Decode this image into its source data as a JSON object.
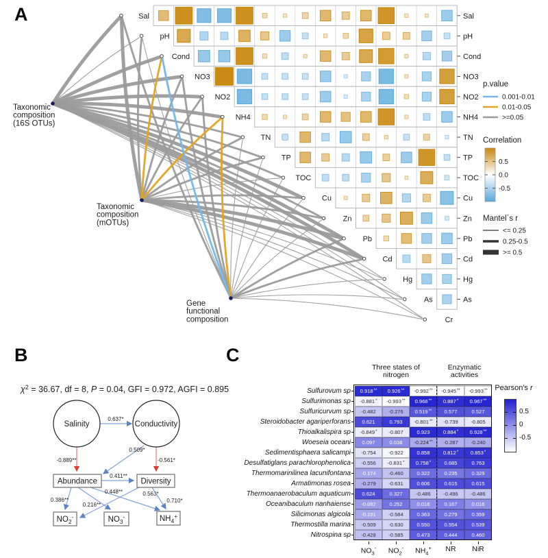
{
  "panels": {
    "a": "A",
    "b": "B",
    "c": "C"
  },
  "chart_data": [
    {
      "id": "panelA_mantel_network_corrplot",
      "type": "heatmap",
      "description": "Upper-triangle Pearson correlation matrix (square size and color = r) combined with Mantel-test network links from three community matrices to environmental variables",
      "variables": [
        "Sal",
        "pH",
        "Cond",
        "NO3",
        "NO2",
        "NH4",
        "TN",
        "TP",
        "TOC",
        "Cu",
        "Zn",
        "Pb",
        "Cd",
        "Hg",
        "As",
        "Cr"
      ],
      "upper_triangle_r_estimated": [
        [
          0.45,
          0.9,
          -0.7,
          -0.7,
          0.9,
          0.12,
          0.05,
          0.2,
          0.5,
          0.3,
          0.5,
          0.85,
          0.06,
          0.04,
          -0.5
        ],
        [
          0.65,
          -0.35,
          -0.3,
          0.55,
          0.35,
          -0.5,
          -0.2,
          0.06,
          0.15,
          0.7,
          0.3,
          0.25,
          -0.45,
          -0.2
        ],
        [
          -0.55,
          -0.55,
          0.9,
          0.1,
          -0.25,
          0.05,
          0.5,
          0.3,
          0.65,
          0.8,
          0.05,
          -0.3,
          -0.45
        ],
        [
          0.95,
          -0.75,
          -0.2,
          -0.2,
          -0.2,
          -0.5,
          -0.05,
          -0.4,
          -0.75,
          0.05,
          -0.4,
          0.75
        ],
        [
          -0.75,
          -0.2,
          -0.2,
          -0.2,
          -0.5,
          -0.05,
          -0.4,
          -0.75,
          0.1,
          -0.4,
          0.75
        ],
        [
          0.15,
          0.05,
          0.2,
          0.5,
          0.4,
          0.5,
          0.85,
          0.05,
          -0.25,
          -0.5
        ],
        [
          -0.2,
          0.5,
          -0.3,
          -0.55,
          0.25,
          0.06,
          -0.2,
          0.2,
          -0.05
        ],
        [
          0.5,
          0.3,
          -0.3,
          -0.55,
          0.25,
          -0.5,
          0.85,
          -0.2
        ],
        [
          -0.25,
          -0.25,
          -0.4,
          0.35,
          0.03,
          0.6,
          -0.12
        ],
        [
          0.05,
          0.3,
          0.55,
          -0.35,
          0.3,
          -0.65
        ],
        [
          0.2,
          0.35,
          0.6,
          -0.5,
          -0.08
        ],
        [
          0.15,
          0.45,
          -0.45,
          -0.5
        ],
        [
          -0.3,
          0.35,
          -0.45
        ],
        [
          -0.45,
          -0.4
        ],
        [
          -0.4
        ]
      ],
      "network_nodes": [
        {
          "id": "16S",
          "label_lines": [
            "Taxonomic",
            "composition",
            "(16S OTUs)"
          ]
        },
        {
          "id": "mOTU",
          "label_lines": [
            "Taxonomic",
            "composition",
            "(mOTUs)"
          ]
        },
        {
          "id": "gene",
          "label_lines": [
            "Gene",
            "functional",
            "composition"
          ]
        }
      ],
      "network_edges": [
        {
          "from": "16S",
          "to": "Sal",
          "w": 3,
          "p": "ns"
        },
        {
          "from": "16S",
          "to": "pH",
          "w": 1,
          "p": "ns"
        },
        {
          "from": "16S",
          "to": "Cond",
          "w": 3,
          "p": "ns"
        },
        {
          "from": "16S",
          "to": "NO3",
          "w": 3,
          "p": "ns"
        },
        {
          "from": "16S",
          "to": "NO2",
          "w": 3,
          "p": "ns"
        },
        {
          "from": "16S",
          "to": "NH4",
          "w": 3,
          "p": "ns"
        },
        {
          "from": "16S",
          "to": "TN",
          "w": 2,
          "p": "ns"
        },
        {
          "from": "16S",
          "to": "TP",
          "w": 2,
          "p": "ns"
        },
        {
          "from": "16S",
          "to": "TOC",
          "w": 2,
          "p": "ns"
        },
        {
          "from": "16S",
          "to": "Cu",
          "w": 3,
          "p": "ns"
        },
        {
          "from": "16S",
          "to": "Zn",
          "w": 2,
          "p": "ns"
        },
        {
          "from": "16S",
          "to": "Pb",
          "w": 3,
          "p": "ns"
        },
        {
          "from": "16S",
          "to": "Cd",
          "w": 3,
          "p": "ns"
        },
        {
          "from": "16S",
          "to": "Hg",
          "w": 1,
          "p": "ns"
        },
        {
          "from": "16S",
          "to": "As",
          "w": 1,
          "p": "ns"
        },
        {
          "from": "16S",
          "to": "Cr",
          "w": 1,
          "p": "ns"
        },
        {
          "from": "mOTU",
          "to": "Sal",
          "w": 3,
          "p": "ns"
        },
        {
          "from": "mOTU",
          "to": "pH",
          "w": 2,
          "p": "ns"
        },
        {
          "from": "mOTU",
          "to": "Cond",
          "w": 2,
          "p": "p01_05"
        },
        {
          "from": "mOTU",
          "to": "NO3",
          "w": 2,
          "p": "ns"
        },
        {
          "from": "mOTU",
          "to": "NO2",
          "w": 2,
          "p": "ns"
        },
        {
          "from": "mOTU",
          "to": "NH4",
          "w": 2,
          "p": "p01_05"
        },
        {
          "from": "mOTU",
          "to": "TN",
          "w": 2,
          "p": "ns"
        },
        {
          "from": "mOTU",
          "to": "TP",
          "w": 2,
          "p": "ns"
        },
        {
          "from": "mOTU",
          "to": "TOC",
          "w": 1,
          "p": "ns"
        },
        {
          "from": "mOTU",
          "to": "Cu",
          "w": 2,
          "p": "ns"
        },
        {
          "from": "mOTU",
          "to": "Zn",
          "w": 2,
          "p": "ns"
        },
        {
          "from": "mOTU",
          "to": "Pb",
          "w": 3,
          "p": "ns"
        },
        {
          "from": "mOTU",
          "to": "Cd",
          "w": 3,
          "p": "ns"
        },
        {
          "from": "mOTU",
          "to": "Hg",
          "w": 1,
          "p": "ns"
        },
        {
          "from": "mOTU",
          "to": "As",
          "w": 1,
          "p": "ns"
        },
        {
          "from": "mOTU",
          "to": "Cr",
          "w": 1,
          "p": "ns"
        },
        {
          "from": "gene",
          "to": "Sal",
          "w": 2,
          "p": "ns"
        },
        {
          "from": "gene",
          "to": "pH",
          "w": 1,
          "p": "ns"
        },
        {
          "from": "gene",
          "to": "Cond",
          "w": 2,
          "p": "p001_01"
        },
        {
          "from": "gene",
          "to": "NO3",
          "w": 2,
          "p": "ns"
        },
        {
          "from": "gene",
          "to": "NO2",
          "w": 2,
          "p": "ns"
        },
        {
          "from": "gene",
          "to": "NH4",
          "w": 2,
          "p": "p01_05"
        },
        {
          "from": "gene",
          "to": "TN",
          "w": 1,
          "p": "ns"
        },
        {
          "from": "gene",
          "to": "TP",
          "w": 1,
          "p": "ns"
        },
        {
          "from": "gene",
          "to": "TOC",
          "w": 1,
          "p": "ns"
        },
        {
          "from": "gene",
          "to": "Cu",
          "w": 1,
          "p": "ns"
        },
        {
          "from": "gene",
          "to": "Zn",
          "w": 1,
          "p": "ns"
        },
        {
          "from": "gene",
          "to": "Pb",
          "w": 2,
          "p": "ns"
        },
        {
          "from": "gene",
          "to": "Cd",
          "w": 2,
          "p": "ns"
        },
        {
          "from": "gene",
          "to": "Hg",
          "w": 1,
          "p": "ns"
        },
        {
          "from": "gene",
          "to": "As",
          "w": 1,
          "p": "ns"
        },
        {
          "from": "gene",
          "to": "Cr",
          "w": 1,
          "p": "ns"
        }
      ],
      "legends": {
        "pvalue": {
          "title": "p.value",
          "items": [
            {
              "label": "0.001-0.01",
              "key": "p001_01"
            },
            {
              "label": "0.01-0.05",
              "key": "p01_05"
            },
            {
              "label": ">=0.05",
              "key": "ns"
            }
          ]
        },
        "correlation": {
          "title": "Correlation",
          "ticks": [
            "0.5",
            "0.0",
            "-0.5"
          ]
        },
        "mantel": {
          "title": "Mantel`s r",
          "items": [
            {
              "label": "<= 0.25",
              "w": 1
            },
            {
              "label": "0.25-0.5",
              "w": 2
            },
            {
              "label": ">= 0.5",
              "w": 3
            }
          ]
        }
      },
      "colors": {
        "positive": "#C8860A",
        "negative": "#58A8DC",
        "edge_gray": "#9b9b9b",
        "edge_orange": "#E3A321",
        "edge_blue": "#74b7ea"
      }
    },
    {
      "id": "panelB_sem",
      "type": "diagram",
      "fit_parts": [
        {
          "t": "χ",
          "i": true
        },
        {
          "t": "2",
          "sup": true
        },
        {
          "t": " = 36.67, df = 8, "
        },
        {
          "t": "P",
          "i": true
        },
        {
          "t": " = 0.04, GFI = 0.972, AGFI = 0.895"
        }
      ],
      "nodes": [
        {
          "id": "salinity",
          "shape": "circle",
          "parts": [
            {
              "t": "Salinity"
            }
          ]
        },
        {
          "id": "conductivity",
          "shape": "circle",
          "parts": [
            {
              "t": "Conductivity"
            }
          ]
        },
        {
          "id": "abundance",
          "shape": "rect",
          "parts": [
            {
              "t": "Abundance"
            }
          ]
        },
        {
          "id": "diversity",
          "shape": "rect",
          "parts": [
            {
              "t": "Diversity"
            }
          ]
        },
        {
          "id": "no2",
          "shape": "rect",
          "parts": [
            {
              "t": "NO"
            },
            {
              "t": "2",
              "sub": true
            },
            {
              "t": "-",
              "sup": true
            }
          ]
        },
        {
          "id": "no3",
          "shape": "rect",
          "parts": [
            {
              "t": "NO"
            },
            {
              "t": "3",
              "sub": true
            },
            {
              "t": "-",
              "sup": true
            }
          ]
        },
        {
          "id": "nh4",
          "shape": "rect",
          "parts": [
            {
              "t": "NH"
            },
            {
              "t": "4",
              "sub": true
            },
            {
              "t": "+",
              "sup": true
            }
          ]
        }
      ],
      "edges": [
        {
          "from": "salinity",
          "to": "conductivity",
          "label": "0.637*",
          "sign": "positive"
        },
        {
          "from": "salinity",
          "to": "abundance",
          "label": "-0.889**",
          "sign": "negative"
        },
        {
          "from": "conductivity",
          "to": "abundance",
          "label": "0.509*",
          "sign": "positive"
        },
        {
          "from": "conductivity",
          "to": "diversity",
          "label": "-0.561*",
          "sign": "negative"
        },
        {
          "from": "abundance",
          "to": "diversity",
          "label": "0.411**",
          "sign": "positive"
        },
        {
          "from": "abundance",
          "to": "no2",
          "label": "0.386**",
          "sign": "positive"
        },
        {
          "from": "abundance",
          "to": "no3",
          "label": "0.216**",
          "sign": "positive"
        },
        {
          "from": "abundance",
          "to": "nh4",
          "label": "0.448**",
          "sign": "positive"
        },
        {
          "from": "diversity",
          "to": "no2",
          "label": "0.563*",
          "sign": "positive"
        },
        {
          "from": "diversity",
          "to": "nh4",
          "label": "0.710*",
          "sign": "positive"
        }
      ],
      "colors": {
        "positive_line": "#7fa3d4",
        "positive_head": "#5b84c4",
        "negative_line": "#e87777",
        "negative_head": "#dd3b30"
      }
    },
    {
      "id": "panelC_pearson_heatmap",
      "type": "heatmap",
      "column_groups": [
        {
          "label_lines": [
            "Three states of",
            "nitrogen"
          ],
          "cols": [
            0,
            1,
            2
          ]
        },
        {
          "label_lines": [
            "Enzymatic",
            "activities"
          ],
          "cols": [
            3,
            4
          ]
        }
      ],
      "columns": [
        [
          {
            "t": "NO"
          },
          {
            "t": "3",
            "sub": true
          },
          {
            "t": "-",
            "sup": true
          }
        ],
        [
          {
            "t": "NO"
          },
          {
            "t": "2",
            "sub": true
          },
          {
            "t": "-",
            "sup": true
          }
        ],
        [
          {
            "t": "NH"
          },
          {
            "t": "4",
            "sub": true
          },
          {
            "t": "+",
            "sup": true
          }
        ],
        [
          {
            "t": "NR"
          }
        ],
        [
          {
            "t": "NiR"
          }
        ]
      ],
      "rows": [
        "Sulfurovum sp",
        "Sulfurimonas sp",
        "Sulfuricurvum sp",
        "Steroidobacter agariperforans",
        "Thioalkalispira sp",
        "Woeseia oceani",
        "Sedimentisphaera salicampi",
        "Desulfatiglans parachlorophenolica",
        "Thermomarinilinea lacunifontana",
        "Armatimonas rosea",
        "Thermoanaerobaculum aquaticum",
        "Oceanibaculum nanhaiense",
        "Silicimonas algicola",
        "Thermostilla marina",
        "Nitrospina sp"
      ],
      "values": [
        [
          "0.918",
          "0.926",
          "-0.992",
          "-0.945",
          "-0.993"
        ],
        [
          "-0.881",
          "-0.993",
          "0.968",
          "0.887",
          "0.967"
        ],
        [
          "-0.482",
          "-0.276",
          "0.519",
          "0.577",
          "0.527"
        ],
        [
          "0.621",
          "0.793",
          "-0.801",
          "-0.739",
          "-0.805"
        ],
        [
          "-0.849",
          "-0.807",
          "0.923",
          "0.884",
          "0.928"
        ],
        [
          "0.097",
          "0.038",
          "-0.224",
          "-0.287",
          "-0.240"
        ],
        [
          "-0.754",
          "-0.922",
          "0.858",
          "0.812",
          "0.853"
        ],
        [
          "-0.556",
          "-0.831",
          "0.758",
          "0.685",
          "0.763"
        ],
        [
          "-0.174",
          "-0.460",
          "0.322",
          "0.235",
          "0.329"
        ],
        [
          "-0.279",
          "-0.631",
          "0.606",
          "0.615",
          "0.615"
        ],
        [
          "0.624",
          "0.327",
          "-0.486",
          "-0.496",
          "-0.486"
        ],
        [
          "-0.092",
          "0.252",
          "0.016",
          "0.167",
          "0.016"
        ],
        [
          "-0.191",
          "-0.584",
          "0.363",
          "0.279",
          "0.359"
        ],
        [
          "-0.509",
          "-0.630",
          "0.550",
          "0.554",
          "0.539"
        ],
        [
          "-0.428",
          "-0.585",
          "0.473",
          "0.444",
          "0.460"
        ]
      ],
      "stars": [
        [
          "**",
          "**",
          "**",
          "**",
          "**"
        ],
        [
          "*",
          "**",
          "**",
          "*",
          "**"
        ],
        [
          "",
          "",
          "**",
          "",
          ""
        ],
        [
          "",
          "",
          "**",
          "",
          ""
        ],
        [
          "*",
          "",
          "",
          "*",
          "**"
        ],
        [
          "",
          "",
          "**",
          "",
          ""
        ],
        [
          "",
          "",
          "",
          "*",
          "*"
        ],
        [
          "",
          "*",
          "*",
          "",
          ""
        ],
        [
          "",
          "",
          "",
          "",
          ""
        ],
        [
          "",
          "",
          "",
          "",
          ""
        ],
        [
          "",
          "",
          "",
          "",
          ""
        ],
        [
          "",
          "",
          "",
          "",
          ""
        ],
        [
          "",
          "",
          "",
          "",
          ""
        ],
        [
          "",
          "",
          "",
          "",
          ""
        ],
        [
          "",
          "",
          "",
          "",
          ""
        ]
      ],
      "legend": {
        "title_main": "Pearson's ",
        "title_italic": "r",
        "ticks": [
          "0.5",
          "0",
          "-0.5"
        ]
      },
      "colors": {
        "high": "#2222d0",
        "low": "#ffffff"
      }
    }
  ]
}
